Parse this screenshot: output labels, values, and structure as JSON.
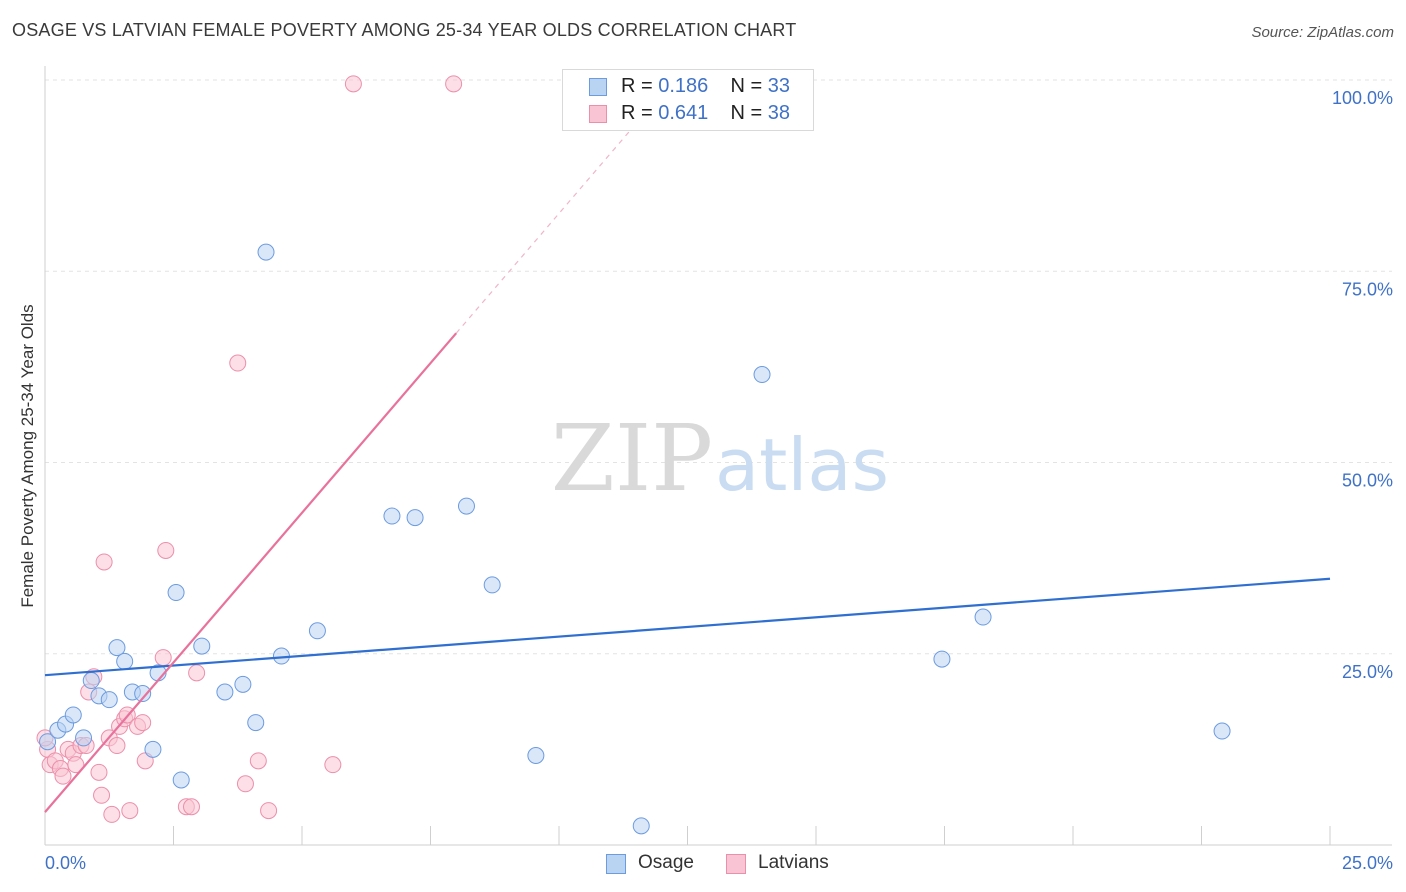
{
  "header": {
    "title": "OSAGE VS LATVIAN FEMALE POVERTY AMONG 25-34 YEAR OLDS CORRELATION CHART",
    "source": "Source: ZipAtlas.com"
  },
  "watermark": {
    "zip": "ZIP",
    "atlas": "atlas"
  },
  "colors": {
    "osage_fill": "#b9d3f3",
    "osage_stroke": "#6c9be0",
    "osage_line": "#2f6fd0",
    "latvian_fill": "#f9c4d3",
    "latvian_stroke": "#ec8fab",
    "latvian_line": "#e8729b",
    "tick_label": "#3f72c6"
  },
  "legend_top": {
    "osage": {
      "r_label": "R =",
      "r_value": "0.186",
      "n_label": "N =",
      "n_value": "33"
    },
    "latvian": {
      "r_label": "R =",
      "r_value": "0.641",
      "n_label": "N =",
      "n_value": "38"
    }
  },
  "legend_bottom": {
    "osage": "Osage",
    "latvian": "Latvians"
  },
  "chart_data": {
    "type": "scatter",
    "title": "OSAGE VS LATVIAN FEMALE POVERTY AMONG 25-34 YEAR OLDS CORRELATION CHART",
    "xlabel": "",
    "ylabel": "Female Poverty Among 25-34 Year Olds",
    "xlim": [
      0,
      25
    ],
    "ylim": [
      0,
      100
    ],
    "x_tick_labels": {
      "min": "0.0%",
      "max": "25.0%"
    },
    "y_tick_labels": [
      {
        "value": 25,
        "label": "25.0%"
      },
      {
        "value": 50,
        "label": "50.0%"
      },
      {
        "value": 75,
        "label": "75.0%"
      },
      {
        "value": 100,
        "label": "100.0%"
      }
    ],
    "grid": true,
    "series": [
      {
        "name": "Osage",
        "r": 0.186,
        "n": 33,
        "trend": {
          "x": [
            0,
            25
          ],
          "y": [
            22.2,
            34.8
          ]
        },
        "points": [
          {
            "x": 0.05,
            "y": 13.5
          },
          {
            "x": 0.25,
            "y": 15.0
          },
          {
            "x": 0.4,
            "y": 15.8
          },
          {
            "x": 0.55,
            "y": 17.0
          },
          {
            "x": 0.75,
            "y": 14.0
          },
          {
            "x": 0.9,
            "y": 21.5
          },
          {
            "x": 1.05,
            "y": 19.5
          },
          {
            "x": 1.25,
            "y": 19.0
          },
          {
            "x": 1.4,
            "y": 25.8
          },
          {
            "x": 1.55,
            "y": 24.0
          },
          {
            "x": 1.7,
            "y": 20.0
          },
          {
            "x": 1.9,
            "y": 19.8
          },
          {
            "x": 2.1,
            "y": 12.5
          },
          {
            "x": 2.2,
            "y": 22.5
          },
          {
            "x": 2.55,
            "y": 33.0
          },
          {
            "x": 2.65,
            "y": 8.5
          },
          {
            "x": 3.05,
            "y": 26.0
          },
          {
            "x": 3.5,
            "y": 20.0
          },
          {
            "x": 3.85,
            "y": 21.0
          },
          {
            "x": 4.1,
            "y": 16.0
          },
          {
            "x": 4.3,
            "y": 77.5
          },
          {
            "x": 4.6,
            "y": 24.7
          },
          {
            "x": 5.3,
            "y": 28.0
          },
          {
            "x": 6.75,
            "y": 43.0
          },
          {
            "x": 7.2,
            "y": 42.8
          },
          {
            "x": 8.2,
            "y": 44.3
          },
          {
            "x": 8.7,
            "y": 34.0
          },
          {
            "x": 9.55,
            "y": 11.7
          },
          {
            "x": 11.6,
            "y": 2.5
          },
          {
            "x": 13.95,
            "y": 61.5
          },
          {
            "x": 17.45,
            "y": 24.3
          },
          {
            "x": 18.25,
            "y": 29.8
          },
          {
            "x": 22.9,
            "y": 14.9
          }
        ]
      },
      {
        "name": "Latvians",
        "r": 0.641,
        "n": 38,
        "trend": {
          "x": [
            0,
            8.0
          ],
          "y": [
            4.3,
            66.9
          ]
        },
        "trend_dashed": {
          "x": [
            8.0,
            11.5
          ],
          "y": [
            66.9,
            94.3
          ]
        },
        "points": [
          {
            "x": 0.05,
            "y": 12.5
          },
          {
            "x": 0.1,
            "y": 10.5
          },
          {
            "x": 0.2,
            "y": 11.0
          },
          {
            "x": 0.3,
            "y": 10.0
          },
          {
            "x": 0.35,
            "y": 9.0
          },
          {
            "x": 0.45,
            "y": 12.5
          },
          {
            "x": 0.55,
            "y": 12.0
          },
          {
            "x": 0.6,
            "y": 10.5
          },
          {
            "x": 0.7,
            "y": 13.0
          },
          {
            "x": 0.8,
            "y": 13.0
          },
          {
            "x": 0.85,
            "y": 20.0
          },
          {
            "x": 0.95,
            "y": 22.0
          },
          {
            "x": 1.05,
            "y": 9.5
          },
          {
            "x": 1.1,
            "y": 6.5
          },
          {
            "x": 1.15,
            "y": 37.0
          },
          {
            "x": 1.25,
            "y": 14.0
          },
          {
            "x": 1.3,
            "y": 4.0
          },
          {
            "x": 1.4,
            "y": 13.0
          },
          {
            "x": 1.45,
            "y": 15.5
          },
          {
            "x": 1.55,
            "y": 16.5
          },
          {
            "x": 1.6,
            "y": 17.0
          },
          {
            "x": 1.65,
            "y": 4.5
          },
          {
            "x": 1.8,
            "y": 15.5
          },
          {
            "x": 1.9,
            "y": 16.0
          },
          {
            "x": 1.95,
            "y": 11.0
          },
          {
            "x": 2.3,
            "y": 24.5
          },
          {
            "x": 2.35,
            "y": 38.5
          },
          {
            "x": 2.75,
            "y": 5.0
          },
          {
            "x": 2.85,
            "y": 5.0
          },
          {
            "x": 2.95,
            "y": 22.5
          },
          {
            "x": 3.75,
            "y": 63.0
          },
          {
            "x": 3.9,
            "y": 8.0
          },
          {
            "x": 4.15,
            "y": 11.0
          },
          {
            "x": 4.35,
            "y": 4.5
          },
          {
            "x": 5.6,
            "y": 10.5
          },
          {
            "x": 6.0,
            "y": 99.5
          },
          {
            "x": 7.95,
            "y": 99.5
          },
          {
            "x": 0.0,
            "y": 14.0
          }
        ]
      }
    ]
  }
}
